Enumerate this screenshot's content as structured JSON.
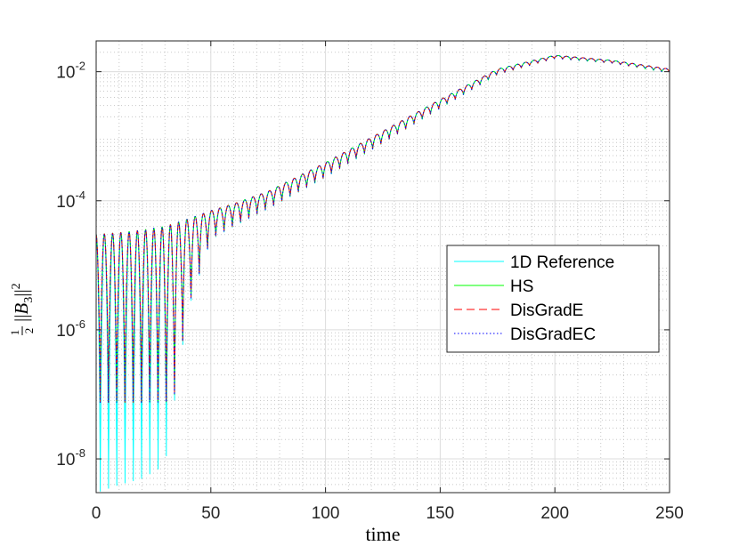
{
  "chart_data": {
    "type": "line",
    "title": "",
    "xlabel": "time",
    "ylabel": "½‖B₃‖²",
    "ylabel_parts": {
      "frac_num": "1",
      "frac_den": "2",
      "norm_open": "||",
      "var": "B",
      "sub": "3",
      "norm_close": "||",
      "sup": "2"
    },
    "x_scale": "linear",
    "y_scale": "log",
    "xlim": [
      0,
      250
    ],
    "ylim": [
      3e-09,
      0.03
    ],
    "grid": "major and minor",
    "legend_position": "right",
    "x_ticks": [
      {
        "value": 0,
        "label": "0"
      },
      {
        "value": 50,
        "label": "50"
      },
      {
        "value": 100,
        "label": "100"
      },
      {
        "value": 150,
        "label": "150"
      },
      {
        "value": 200,
        "label": "200"
      },
      {
        "value": 250,
        "label": "250"
      }
    ],
    "y_ticks": [
      {
        "value": 1e-08,
        "base": "10",
        "exp": "-8"
      },
      {
        "value": 1e-06,
        "base": "10",
        "exp": "-6"
      },
      {
        "value": 0.0001,
        "base": "10",
        "exp": "-4"
      },
      {
        "value": 0.01,
        "base": "10",
        "exp": "-2"
      }
    ],
    "envelope": {
      "x": [
        0,
        10,
        20,
        30,
        40,
        50,
        60,
        75,
        100,
        125,
        150,
        175,
        200,
        225,
        250
      ],
      "upper": [
        3e-05,
        3.2e-05,
        3.5e-05,
        4e-05,
        5.2e-05,
        7e-05,
        9e-05,
        0.00014,
        0.00039,
        0.0012,
        0.0037,
        0.011,
        0.018,
        0.015,
        0.011
      ],
      "lower": [
        3e-09,
        4e-09,
        5e-09,
        8e-09,
        2e-06,
        2.5e-05,
        4e-05,
        7.5e-05,
        0.00023,
        0.00078,
        0.0027,
        0.009,
        0.016,
        0.0135,
        0.0095
      ]
    },
    "oscillation_period": 3.6,
    "series": [
      {
        "name": "1D Reference",
        "color": "#00FFFF",
        "style": "solid"
      },
      {
        "name": "HS",
        "color": "#00FF00",
        "style": "solid"
      },
      {
        "name": "DisGradE",
        "color": "#FF0000",
        "style": "dashed"
      },
      {
        "name": "DisGradEC",
        "color": "#0000FF",
        "style": "dotted"
      }
    ]
  }
}
